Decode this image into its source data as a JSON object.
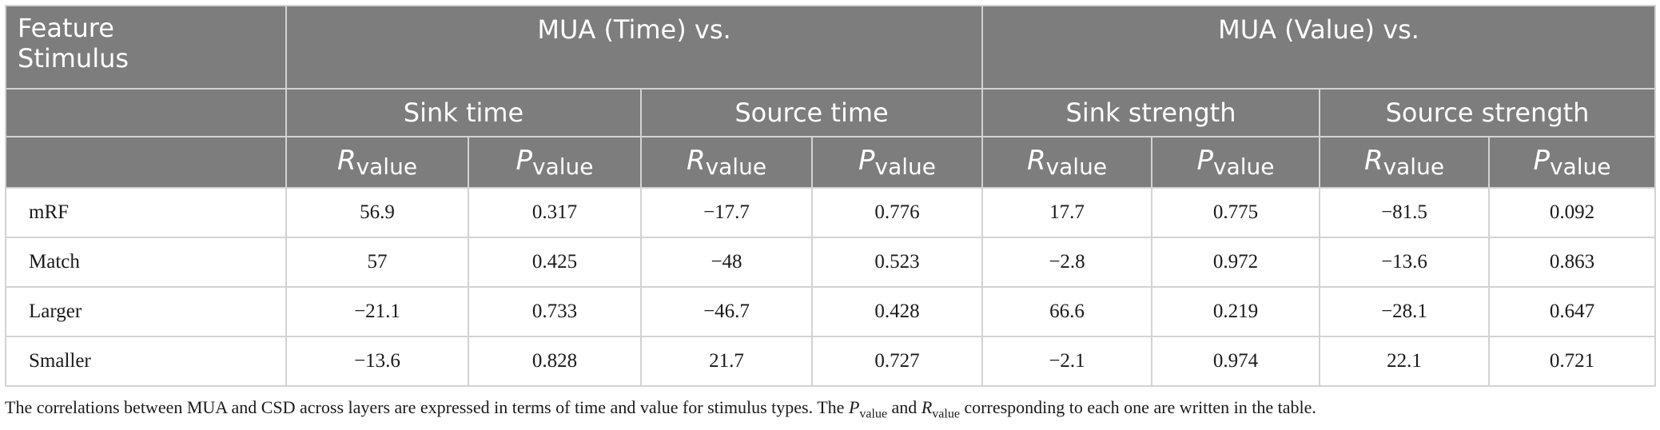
{
  "header": {
    "corner_label_line1": "Feature",
    "corner_label_line2": "Stimulus",
    "group_time": "MUA (Time) vs.",
    "group_value": "MUA (Value) vs.",
    "subgroups": [
      "Sink time",
      "Source time",
      "Sink strength",
      "Source strength"
    ],
    "stat_letter_r": "R",
    "stat_letter_p": "P",
    "stat_subscript": "value"
  },
  "rows": [
    {
      "stimulus": "mRF",
      "values": [
        "56.9",
        "0.317",
        "−17.7",
        "0.776",
        "17.7",
        "0.775",
        "−81.5",
        "0.092"
      ]
    },
    {
      "stimulus": "Match",
      "values": [
        "57",
        "0.425",
        "−48",
        "0.523",
        "−2.8",
        "0.972",
        "−13.6",
        "0.863"
      ]
    },
    {
      "stimulus": "Larger",
      "values": [
        "−21.1",
        "0.733",
        "−46.7",
        "0.428",
        "66.6",
        "0.219",
        "−28.1",
        "0.647"
      ]
    },
    {
      "stimulus": "Smaller",
      "values": [
        "−13.6",
        "0.828",
        "21.7",
        "0.727",
        "−2.1",
        "0.974",
        "22.1",
        "0.721"
      ]
    }
  ],
  "caption": {
    "part1": "The correlations between MUA and CSD across layers are expressed in terms of time and value for stimulus types. The ",
    "p_letter": "P",
    "p_sub": "value",
    "part2": " and ",
    "r_letter": "R",
    "r_sub": "value",
    "part3": " corresponding to each one are written in the table."
  }
}
